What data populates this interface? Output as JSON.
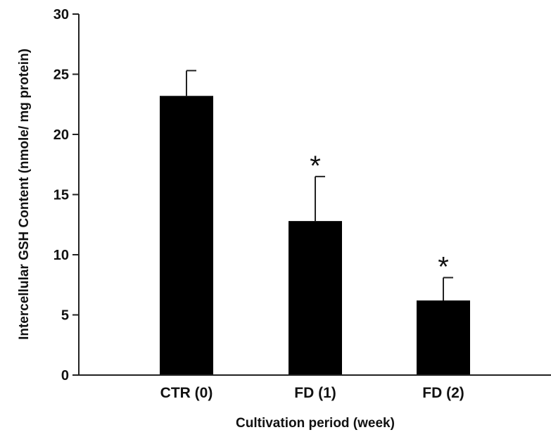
{
  "chart_data": {
    "type": "bar",
    "categories": [
      "CTR (0)",
      "FD (1)",
      "FD (2)"
    ],
    "values": [
      23.2,
      12.8,
      6.2
    ],
    "errors": [
      2.1,
      3.7,
      1.9
    ],
    "markers": [
      "",
      "*",
      "*"
    ],
    "xlabel": "Cultivation period (week)",
    "ylabel": "Intercellular GSH Content (nmole/ mg protein)",
    "ylim": [
      0,
      30
    ],
    "yticks": [
      0,
      5,
      10,
      15,
      20,
      25,
      30
    ],
    "ytick_labels": [
      "0",
      "5",
      "10",
      "15",
      "20",
      "25",
      "30"
    ],
    "grid": false,
    "colors": {
      "bar": "#000000",
      "axis": "#222222"
    }
  }
}
